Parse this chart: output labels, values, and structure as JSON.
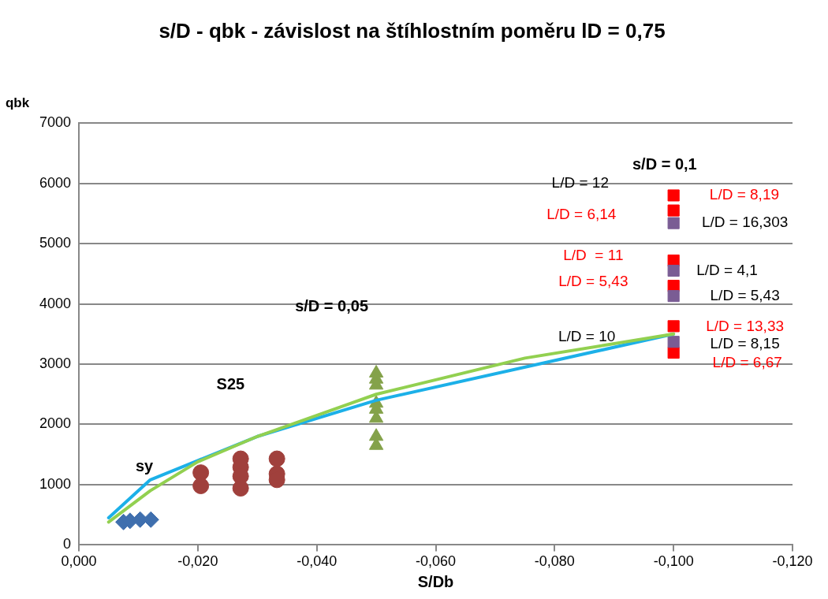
{
  "chart_data": {
    "type": "scatter",
    "title": "s/D - qbk - závislost na štíhlostním poměru lD = 0,75",
    "xlabel": "S/Db",
    "ylabel": "qbk",
    "xlim": [
      0,
      -0.12
    ],
    "xticks": [
      {
        "value": 0,
        "label": "0,000"
      },
      {
        "value": -0.02,
        "label": "-0,020"
      },
      {
        "value": -0.04,
        "label": "-0,040"
      },
      {
        "value": -0.06,
        "label": "-0,060"
      },
      {
        "value": -0.08,
        "label": "-0,080"
      },
      {
        "value": -0.1,
        "label": "-0,100"
      },
      {
        "value": -0.12,
        "label": "-0,120"
      }
    ],
    "ylim": [
      0,
      7000
    ],
    "yticks": [
      0,
      1000,
      2000,
      3000,
      4000,
      5000,
      6000,
      7000
    ],
    "grid": "y",
    "legend": false,
    "series": [
      {
        "type": "line",
        "color": "#92d050",
        "marker": "none",
        "x": [
          -0.005,
          -0.012,
          -0.02,
          -0.03,
          -0.05,
          -0.075,
          -0.1
        ],
        "values": [
          380,
          900,
          1380,
          1800,
          2500,
          3100,
          3500
        ]
      },
      {
        "type": "line",
        "color": "#1cb0e8",
        "marker": "none",
        "x": [
          -0.005,
          -0.012,
          -0.02,
          -0.03,
          -0.05,
          -0.1
        ],
        "values": [
          450,
          1080,
          1400,
          1800,
          2400,
          3500
        ]
      },
      {
        "type": "scatter",
        "color": "#3f6fae",
        "marker": "diamond",
        "x": [
          -0.0075,
          -0.0086,
          -0.0103,
          -0.0121
        ],
        "values": [
          380,
          400,
          420,
          420
        ]
      },
      {
        "type": "scatter",
        "color": "#a0403c",
        "marker": "circle",
        "x": [
          -0.0205,
          -0.0205,
          -0.0272,
          -0.0272,
          -0.0272,
          -0.0272,
          -0.0333,
          -0.0333,
          -0.0333
        ],
        "values": [
          1200,
          980,
          1430,
          1290,
          1140,
          940,
          1430,
          1180,
          1080
        ]
      },
      {
        "type": "scatter",
        "color": "#84a24a",
        "marker": "triangle",
        "x": [
          -0.05,
          -0.05,
          -0.05,
          -0.05,
          -0.05,
          -0.05,
          -0.05,
          -0.05
        ],
        "values": [
          2850,
          2750,
          2650,
          2350,
          2250,
          2100,
          1800,
          1650
        ]
      },
      {
        "type": "scatter",
        "color": "#7a5c94",
        "marker": "square",
        "x": [
          -0.1,
          -0.1,
          -0.1,
          -0.1
        ],
        "values": [
          5340,
          4550,
          4130,
          3370
        ]
      },
      {
        "type": "scatter",
        "color": "#ff0000",
        "marker": "square",
        "x": [
          -0.1,
          -0.1,
          -0.1,
          -0.1,
          -0.1,
          -0.1
        ],
        "values": [
          5800,
          5550,
          4720,
          4300,
          3630,
          3190
        ]
      }
    ],
    "annotations": [
      "sy",
      "S25",
      "s/D = 0,05",
      "s/D = 0,1",
      "L/D = 12",
      "L/D = 6,14",
      "L/D = 8,19",
      "L/D = 16,303",
      "L/D  = 11",
      "L/D = 5,43",
      "L/D = 4,1",
      "L/D = 5,43",
      "L/D = 13,33",
      "L/D = 10",
      "L/D = 8,15",
      "L/D = 6,67"
    ]
  }
}
